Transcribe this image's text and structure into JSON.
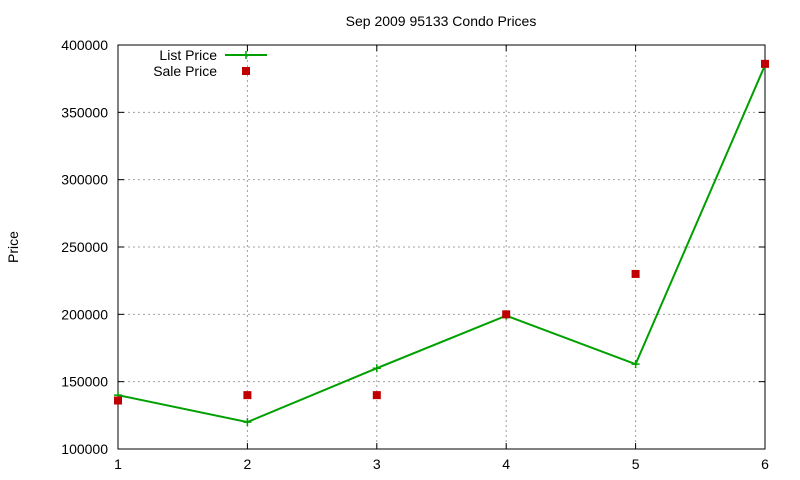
{
  "chart_data": {
    "type": "line",
    "title": "Sep 2009 95133 Condo Prices",
    "xlabel": "",
    "ylabel": "Price",
    "xlim": [
      1,
      6
    ],
    "ylim": [
      100000,
      400000
    ],
    "x_ticks": [
      "1",
      "2",
      "3",
      "4",
      "5",
      "6"
    ],
    "y_ticks": [
      "100000",
      "150000",
      "200000",
      "250000",
      "300000",
      "350000",
      "400000"
    ],
    "grid": true,
    "legend_position": "top-left",
    "series": [
      {
        "name": "List Price",
        "style": "line+cross",
        "color": "#00a000",
        "x": [
          1,
          2,
          3,
          4,
          5,
          6
        ],
        "y": [
          140000,
          120000,
          160000,
          199000,
          163000,
          385000
        ]
      },
      {
        "name": "Sale Price",
        "style": "square-points",
        "color": "#c00000",
        "x": [
          1,
          2,
          3,
          4,
          5,
          6
        ],
        "y": [
          136000,
          140000,
          140000,
          200000,
          230000,
          386000
        ]
      }
    ]
  }
}
